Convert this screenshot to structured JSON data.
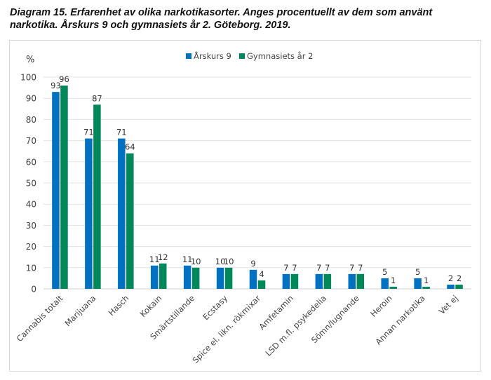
{
  "title_line1": "Diagram 15. Erfarenhet av olika narkotikasorter. Anges procentuellt av dem som använt",
  "title_line2": "narkotika. Årskurs 9 och gymnasiets år 2. Göteborg. 2019.",
  "chart_data": {
    "type": "bar",
    "title": "Diagram 15. Erfarenhet av olika narkotikasorter. Anges procentuellt av dem som använt narkotika. Årskurs 9 och gymnasiets år 2. Göteborg. 2019.",
    "xlabel": "",
    "ylabel": "%",
    "ylim": [
      0,
      100
    ],
    "yticks": [
      0,
      10,
      20,
      30,
      40,
      50,
      60,
      70,
      80,
      90,
      100
    ],
    "grid": true,
    "legend_position": "top-right",
    "categories": [
      "Cannabis totalt",
      "Marijuana",
      "Hasch",
      "Kokain",
      "Smärtstillande",
      "Ecstasy",
      "Spice el. likn. rökmixar",
      "Amfetamin",
      "LSD m.fl. psykedelia",
      "Sömn/lugnande",
      "Heroin",
      "Annan narkotika",
      "Vet ej"
    ],
    "series": [
      {
        "name": "Årskurs 9",
        "color": "#0070c0",
        "values": [
          93,
          71,
          71,
          11,
          11,
          10,
          9,
          7,
          7,
          7,
          5,
          5,
          2
        ]
      },
      {
        "name": "Gymnasiets år 2",
        "color": "#00875a",
        "values": [
          96,
          87,
          64,
          12,
          10,
          10,
          4,
          7,
          7,
          7,
          1,
          1,
          2
        ]
      }
    ]
  }
}
